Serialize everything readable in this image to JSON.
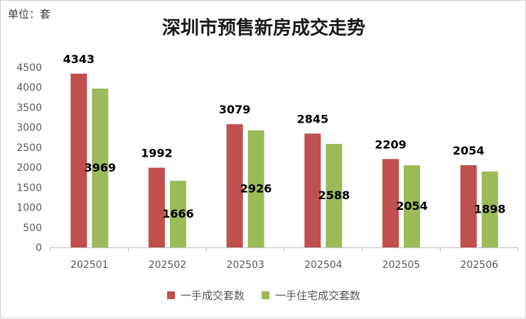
{
  "unit_label": "单位：套",
  "chart_data": {
    "type": "bar",
    "title": "深圳市预售新房成交走势",
    "categories": [
      "202501",
      "202502",
      "202503",
      "202504",
      "202505",
      "202506"
    ],
    "series": [
      {
        "name": "一手成交套数",
        "values": [
          4343,
          1992,
          3079,
          2845,
          2209,
          2054
        ],
        "color": "#c0504d"
      },
      {
        "name": "一手住宅成交套数",
        "values": [
          3969,
          1666,
          2926,
          2588,
          2054,
          1898
        ],
        "color": "#9bbb59"
      }
    ],
    "yticks": [
      0,
      500,
      1000,
      1500,
      2000,
      2500,
      3000,
      3500,
      4000,
      4500
    ],
    "ylim": [
      0,
      4500
    ],
    "grid": false,
    "legend_position": "bottom"
  }
}
